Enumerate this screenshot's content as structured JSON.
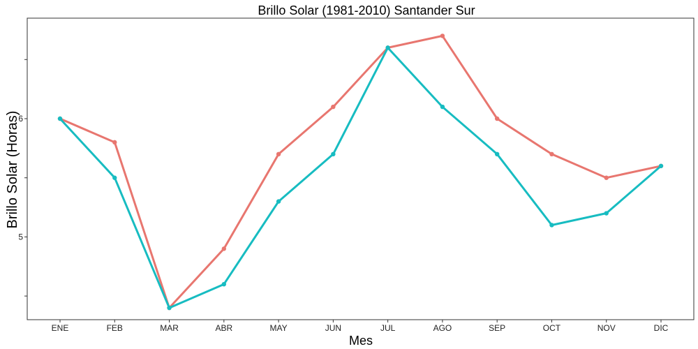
{
  "chart_data": {
    "type": "line",
    "title": "Brillo Solar (1981-2010)  Santander Sur",
    "xlabel": "Mes",
    "ylabel": "Brillo Solar (Horas)",
    "categories": [
      "ENE",
      "FEB",
      "MAR",
      "ABR",
      "MAY",
      "JUN",
      "JUL",
      "AGO",
      "SEP",
      "OCT",
      "NOV",
      "DIC"
    ],
    "ylim": [
      4.3,
      6.85
    ],
    "yticks": [
      4.5,
      5,
      5.5,
      6,
      6.5
    ],
    "ytick_labels": [
      "",
      "5",
      "",
      "6",
      ""
    ],
    "grid": false,
    "legend": "none",
    "series": [
      {
        "color": "#E8766F",
        "values": [
          6.0,
          5.8,
          4.4,
          4.9,
          5.7,
          6.1,
          6.6,
          6.7,
          6.0,
          5.7,
          5.5,
          5.6
        ]
      },
      {
        "color": "#17BCC1",
        "values": [
          6.0,
          5.5,
          4.4,
          4.6,
          5.3,
          5.7,
          6.6,
          6.1,
          5.7,
          5.1,
          5.2,
          5.6
        ]
      }
    ]
  }
}
